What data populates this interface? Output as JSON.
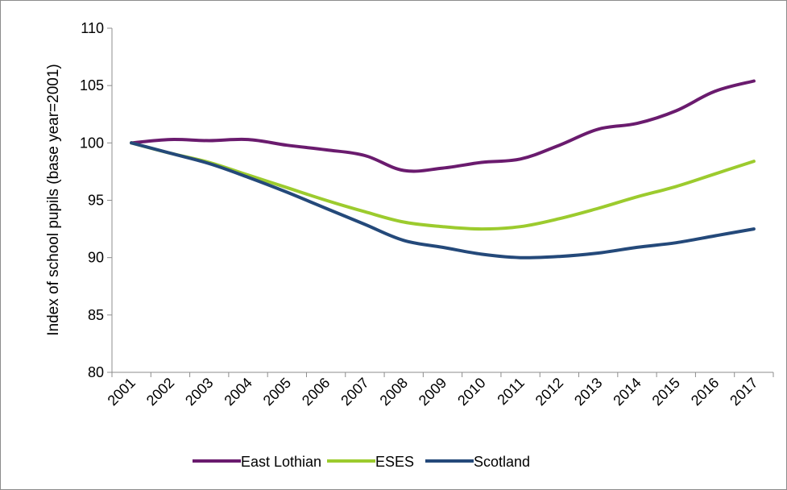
{
  "chart_data": {
    "type": "line",
    "title": "",
    "xlabel": "",
    "ylabel": "Index of school pupils (base year=2001)",
    "ylim": [
      80,
      110
    ],
    "yticks": [
      "80",
      "85",
      "90",
      "95",
      "100",
      "105",
      "110"
    ],
    "grid": false,
    "legend_position": "bottom",
    "categories": [
      "2001",
      "2002",
      "2003",
      "2004",
      "2005",
      "2006",
      "2007",
      "2008",
      "2009",
      "2010",
      "2011",
      "2012",
      "2013",
      "2014",
      "2015",
      "2016",
      "2017"
    ],
    "series": [
      {
        "name": "East Lothian",
        "color": "#6a1b6e",
        "values": [
          100.0,
          100.3,
          100.2,
          100.3,
          99.8,
          99.4,
          98.9,
          97.6,
          97.8,
          98.3,
          98.6,
          99.8,
          101.2,
          101.7,
          102.8,
          104.5,
          105.4
        ]
      },
      {
        "name": "ESES",
        "color": "#9ccb2e",
        "values": [
          100.0,
          99.1,
          98.3,
          97.2,
          96.1,
          95.0,
          94.0,
          93.1,
          92.7,
          92.5,
          92.7,
          93.4,
          94.3,
          95.3,
          96.2,
          97.3,
          98.4
        ]
      },
      {
        "name": "Scotland",
        "color": "#24497a",
        "values": [
          100.0,
          99.1,
          98.2,
          97.0,
          95.7,
          94.3,
          92.9,
          91.5,
          90.9,
          90.3,
          90.0,
          90.1,
          90.4,
          90.9,
          91.3,
          91.9,
          92.5
        ]
      }
    ]
  }
}
